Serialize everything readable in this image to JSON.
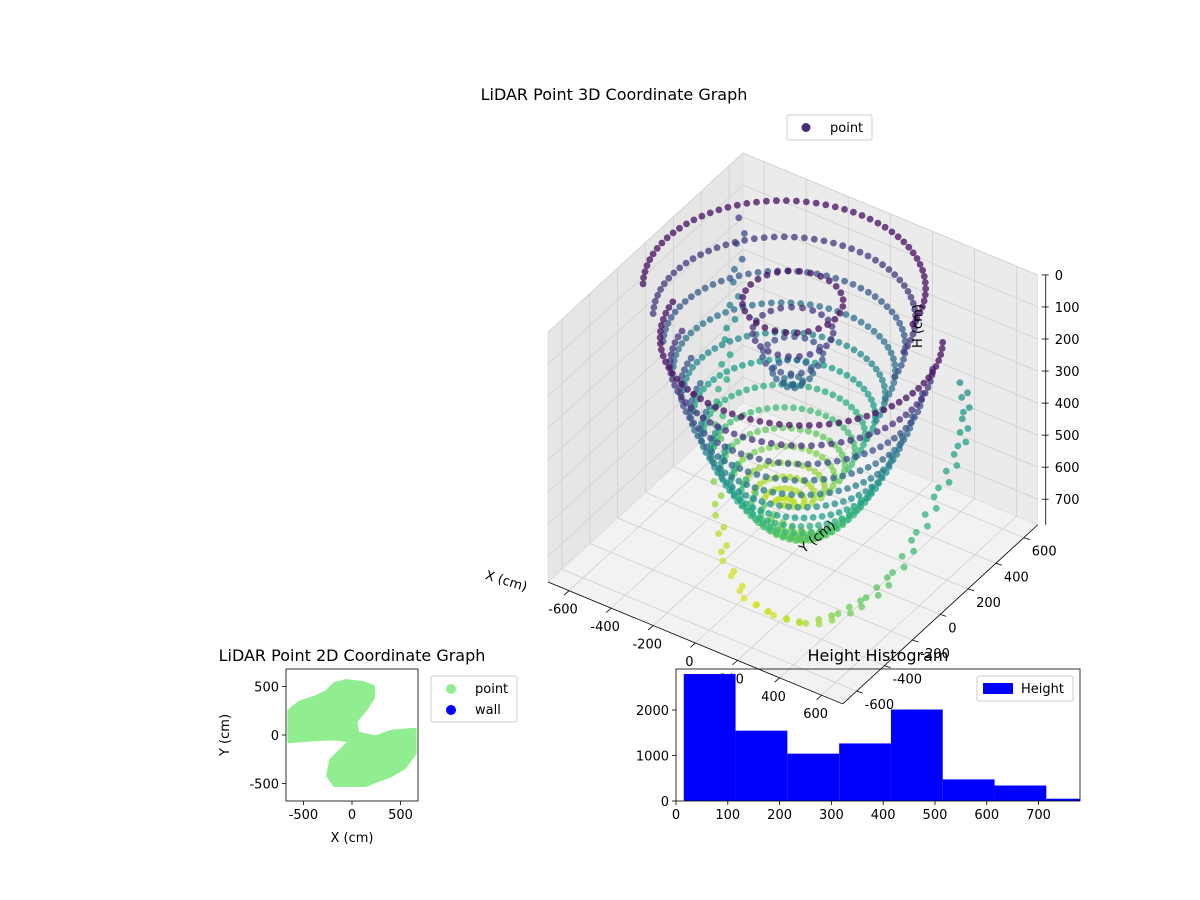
{
  "chart_data": [
    {
      "type": "scatter",
      "projection": "3d",
      "title": "LiDAR Point 3D Coordinate Graph",
      "xlabel": "X (cm)",
      "ylabel": "Y (cm)",
      "zlabel": "H (cm)",
      "xlim": [
        -700,
        700
      ],
      "ylim": [
        -700,
        700
      ],
      "zlim": [
        0,
        780
      ],
      "z_inverted": true,
      "x_ticks": [
        -600,
        -400,
        -200,
        0,
        200,
        400,
        600
      ],
      "y_ticks": [
        -600,
        -400,
        -200,
        0,
        200,
        400,
        600
      ],
      "z_ticks": [
        0,
        100,
        200,
        300,
        400,
        500,
        600,
        700
      ],
      "colormap": "viridis",
      "grid": true,
      "legend": {
        "position": "top-right",
        "entries": [
          "point"
        ]
      },
      "series": [
        {
          "name": "point",
          "color": "#472c7a",
          "description_shape": "two bowl-shaped surfaces of points, heights 0-780 cm",
          "scatter_floor_ring": [
            [
              -640,
              600,
              150
            ],
            [
              -600,
              500,
              300
            ],
            [
              -560,
              380,
              420
            ],
            [
              -480,
              200,
              520
            ],
            [
              -380,
              20,
              600
            ],
            [
              -260,
              -140,
              680
            ],
            [
              -120,
              -300,
              720
            ],
            [
              60,
              -420,
              740
            ],
            [
              240,
              -480,
              720
            ],
            [
              420,
              -520,
              680
            ],
            [
              560,
              -500,
              620
            ],
            [
              640,
              -420,
              580
            ],
            [
              660,
              -260,
              560
            ],
            [
              640,
              -60,
              520
            ],
            [
              600,
              160,
              480
            ],
            [
              560,
              360,
              440
            ],
            [
              480,
              520,
              420
            ],
            [
              380,
              640,
              380
            ]
          ]
        }
      ]
    },
    {
      "type": "scatter",
      "title": "LiDAR Point 2D Coordinate Graph",
      "xlabel": "X (cm)",
      "ylabel": "Y (cm)",
      "xlim": [
        -680,
        680
      ],
      "ylim": [
        -680,
        680
      ],
      "x_ticks": [
        -500,
        0,
        500
      ],
      "y_ticks": [
        -500,
        0,
        500
      ],
      "legend": {
        "position": "outside-right",
        "entries": [
          "point",
          "wall"
        ]
      },
      "series": [
        {
          "name": "point",
          "color": "#90ee90",
          "region_outline": [
            [
              -650,
              250
            ],
            [
              -540,
              340
            ],
            [
              -380,
              390
            ],
            [
              -260,
              450
            ],
            [
              -180,
              530
            ],
            [
              -60,
              560
            ],
            [
              120,
              540
            ],
            [
              220,
              500
            ],
            [
              220,
              380
            ],
            [
              140,
              260
            ],
            [
              40,
              140
            ],
            [
              60,
              20
            ],
            [
              240,
              -20
            ],
            [
              420,
              40
            ],
            [
              650,
              60
            ],
            [
              650,
              -190
            ],
            [
              540,
              -340
            ],
            [
              400,
              -420
            ],
            [
              240,
              -480
            ],
            [
              140,
              -520
            ],
            [
              -180,
              -520
            ],
            [
              -250,
              -420
            ],
            [
              -220,
              -260
            ],
            [
              -100,
              -140
            ],
            [
              -20,
              -60
            ],
            [
              -180,
              -40
            ],
            [
              -400,
              -50
            ],
            [
              -650,
              -70
            ]
          ]
        },
        {
          "name": "wall",
          "color": "#0000ff",
          "values": []
        }
      ]
    },
    {
      "type": "bar",
      "subtype": "histogram",
      "title": "Height Histogram",
      "xlabel": "",
      "ylabel": "",
      "xlim": [
        0,
        780
      ],
      "ylim": [
        0,
        2900
      ],
      "x_ticks": [
        0,
        100,
        200,
        300,
        400,
        500,
        600,
        700
      ],
      "y_ticks": [
        0,
        1000,
        2000
      ],
      "bin_edges": [
        15,
        115,
        215,
        315,
        415,
        515,
        615,
        715,
        815
      ],
      "values": [
        2790,
        1545,
        1040,
        1265,
        2010,
        475,
        340,
        50
      ],
      "legend": {
        "position": "top-right",
        "entries": [
          "Height"
        ]
      },
      "series": [
        {
          "name": "Height",
          "color": "#0000ff"
        }
      ]
    }
  ]
}
